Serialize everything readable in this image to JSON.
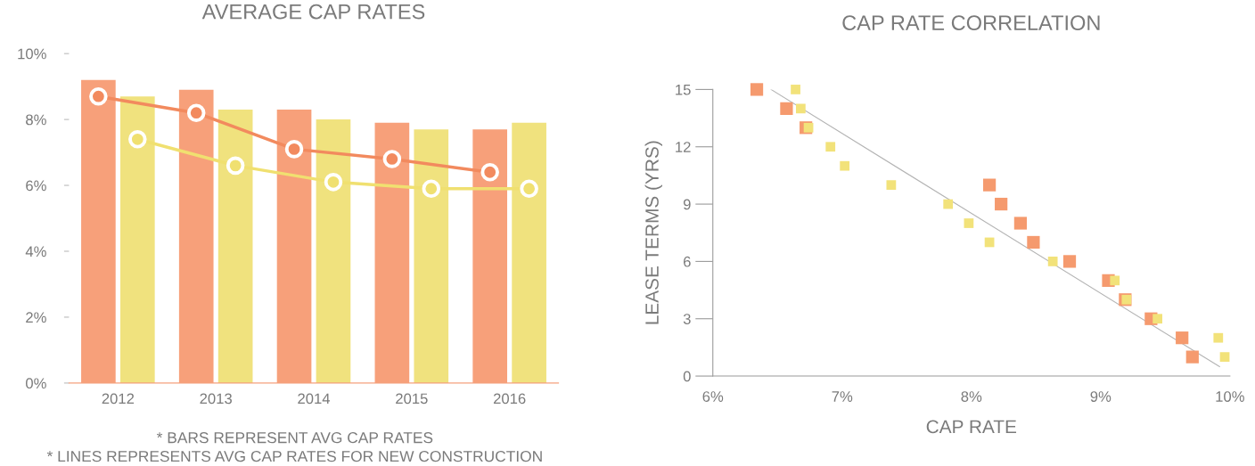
{
  "chart_data": [
    {
      "type": "bar",
      "title": "AVERAGE CAP RATES",
      "categories": [
        "2012",
        "2013",
        "2014",
        "2015",
        "2016"
      ],
      "series": [
        {
          "color": "#f7a07a",
          "values": [
            9.2,
            8.9,
            8.3,
            7.9,
            7.7
          ]
        },
        {
          "color": "#f0e27e",
          "values": [
            8.7,
            8.3,
            8.0,
            7.7,
            7.9
          ]
        },
        {
          "type": "line",
          "color": "#f28a5e",
          "values": [
            8.7,
            8.2,
            7.1,
            6.8,
            6.4
          ]
        },
        {
          "type": "line",
          "color": "#f0e070",
          "values": [
            7.4,
            6.6,
            6.1,
            5.9,
            5.9
          ]
        }
      ],
      "ylim": [
        0,
        10
      ],
      "yticks": [
        {
          "value": 0,
          "label": "0%"
        },
        {
          "value": 2,
          "label": "2%"
        },
        {
          "value": 4,
          "label": "4%"
        },
        {
          "value": 6,
          "label": "6%"
        },
        {
          "value": 8,
          "label": "8%"
        },
        {
          "value": 10,
          "label": "10%"
        }
      ],
      "marker": "circle",
      "grid": false,
      "annotations": [
        "* BARS REPRESENT AVG CAP RATES",
        "* LINES REPRESENTS AVG CAP RATES FOR NEW CONSTRUCTION"
      ]
    },
    {
      "type": "scatter",
      "title": "CAP RATE CORRELATION",
      "xlabel": "CAP RATE",
      "ylabel": "LEASE TERMS (YRS)",
      "series": [
        {
          "type": "line",
          "marker": "none",
          "color": "#b4b4b4",
          "x": [
            6.45,
            9.92
          ],
          "values": [
            15,
            0.49
          ]
        },
        {
          "color": "#f59a6e",
          "x": [
            6.34,
            6.57,
            6.72,
            8.14,
            8.23,
            8.38,
            8.48,
            8.76,
            9.06,
            9.19,
            9.39,
            9.63,
            9.71
          ],
          "values": [
            15,
            14,
            13,
            10,
            9,
            8,
            7,
            6,
            5,
            4,
            3,
            2,
            1
          ]
        },
        {
          "color": "#f2e27a",
          "x": [
            6.64,
            6.68,
            6.74,
            6.91,
            7.02,
            7.38,
            7.82,
            7.98,
            8.14,
            8.63,
            9.11,
            9.2,
            9.44,
            9.91,
            9.96
          ],
          "values": [
            15,
            14,
            13,
            12,
            11,
            10,
            9,
            8,
            7,
            6,
            5,
            4,
            3,
            2,
            1
          ]
        }
      ],
      "xlim": [
        6,
        10
      ],
      "xticks": [
        {
          "value": 6,
          "label": "6%"
        },
        {
          "value": 7,
          "label": "7%"
        },
        {
          "value": 8,
          "label": "8%"
        },
        {
          "value": 9,
          "label": "9%"
        },
        {
          "value": 10,
          "label": "10%"
        }
      ],
      "ylim": [
        0,
        15
      ],
      "yticks": [
        0,
        3,
        6,
        9,
        12,
        15
      ],
      "marker": "square",
      "grid": false
    }
  ]
}
